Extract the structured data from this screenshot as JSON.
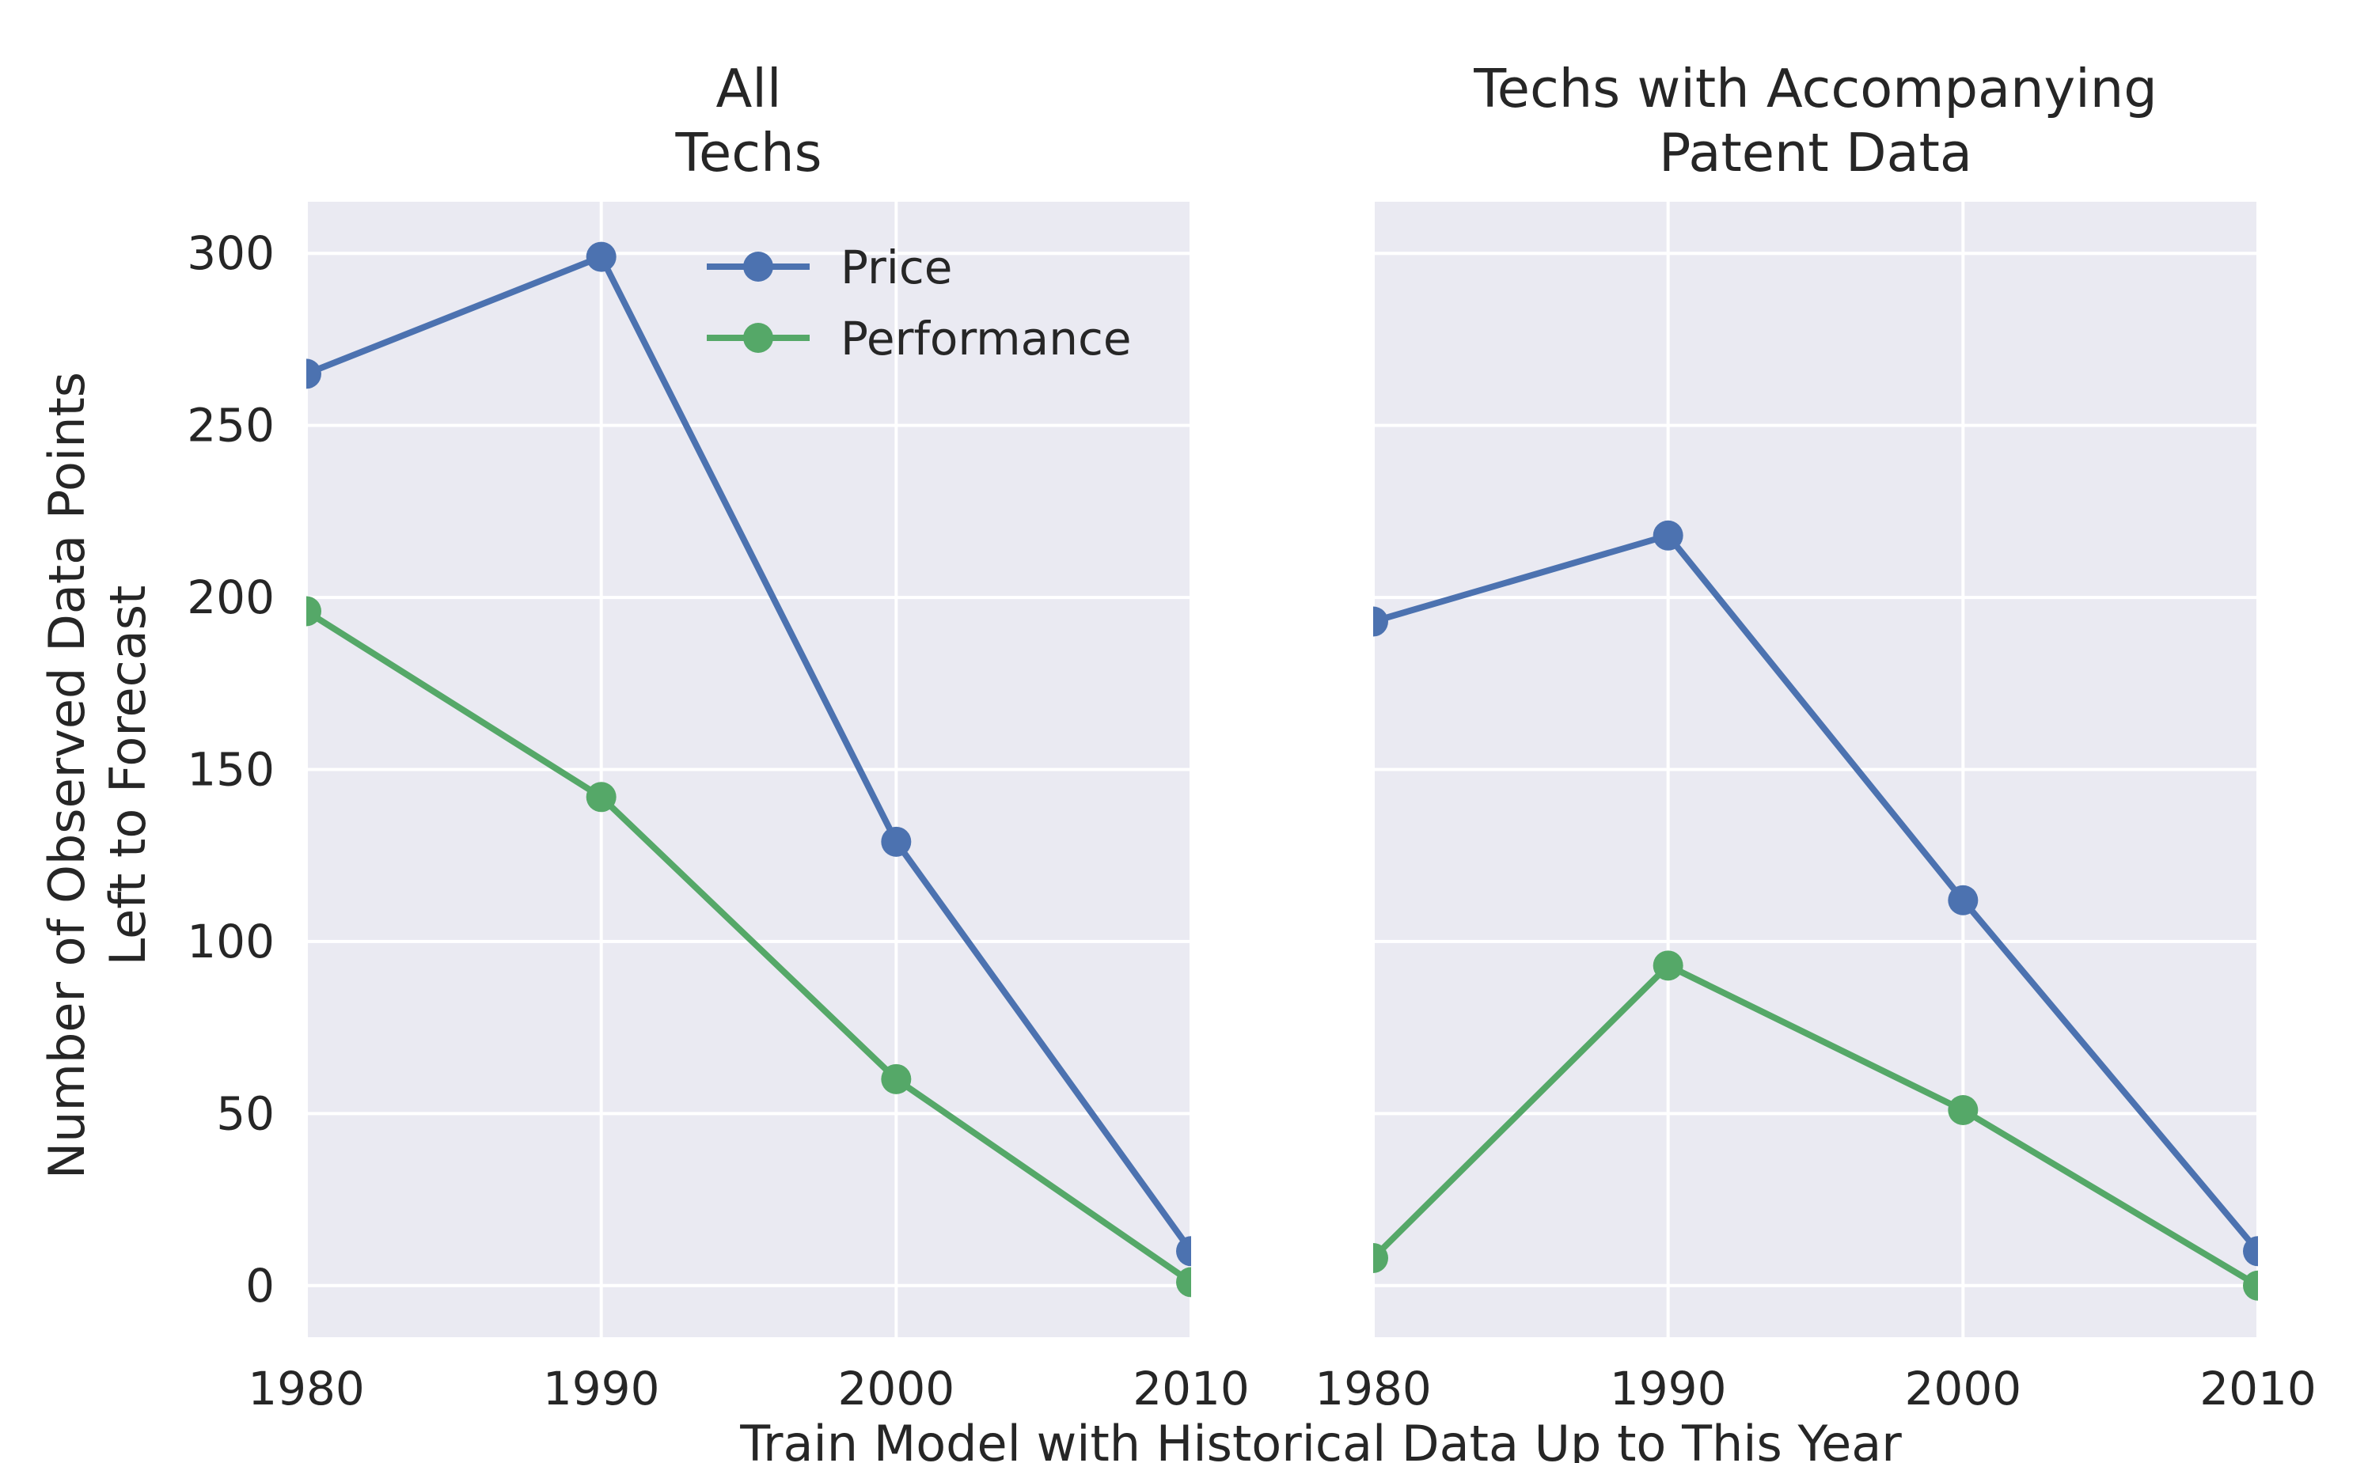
{
  "chart_data": [
    {
      "type": "line",
      "title": [
        "All",
        "Techs"
      ],
      "x": [
        1980,
        1990,
        2000,
        2010
      ],
      "xticks": [
        "1980",
        "1990",
        "2000",
        "2010"
      ],
      "yticks": [
        "0",
        "50",
        "100",
        "150",
        "200",
        "250",
        "300"
      ],
      "xlim": [
        1980,
        2010
      ],
      "ylim": [
        -15,
        315
      ],
      "grid": true,
      "legend": "top-right",
      "series": [
        {
          "name": "Price",
          "color": "#4c72b0",
          "values": [
            265,
            299,
            129,
            10
          ]
        },
        {
          "name": "Performance",
          "color": "#55a868",
          "values": [
            196,
            142,
            60,
            1
          ]
        }
      ]
    },
    {
      "type": "line",
      "title": [
        "Techs with Accompanying",
        "Patent Data"
      ],
      "x": [
        1980,
        1990,
        2000,
        2010
      ],
      "xticks": [
        "1980",
        "1990",
        "2000",
        "2010"
      ],
      "yticks": [],
      "xlim": [
        1980,
        2010
      ],
      "ylim": [
        -15,
        315
      ],
      "grid": true,
      "series": [
        {
          "name": "Price",
          "color": "#4c72b0",
          "values": [
            193,
            218,
            112,
            10
          ]
        },
        {
          "name": "Performance",
          "color": "#55a868",
          "values": [
            8,
            93,
            51,
            0
          ]
        }
      ]
    }
  ],
  "ylabel": [
    "Number of Observed Data Points",
    "Left to Forecast"
  ],
  "xlabel": "Train Model with Historical Data Up to This Year"
}
